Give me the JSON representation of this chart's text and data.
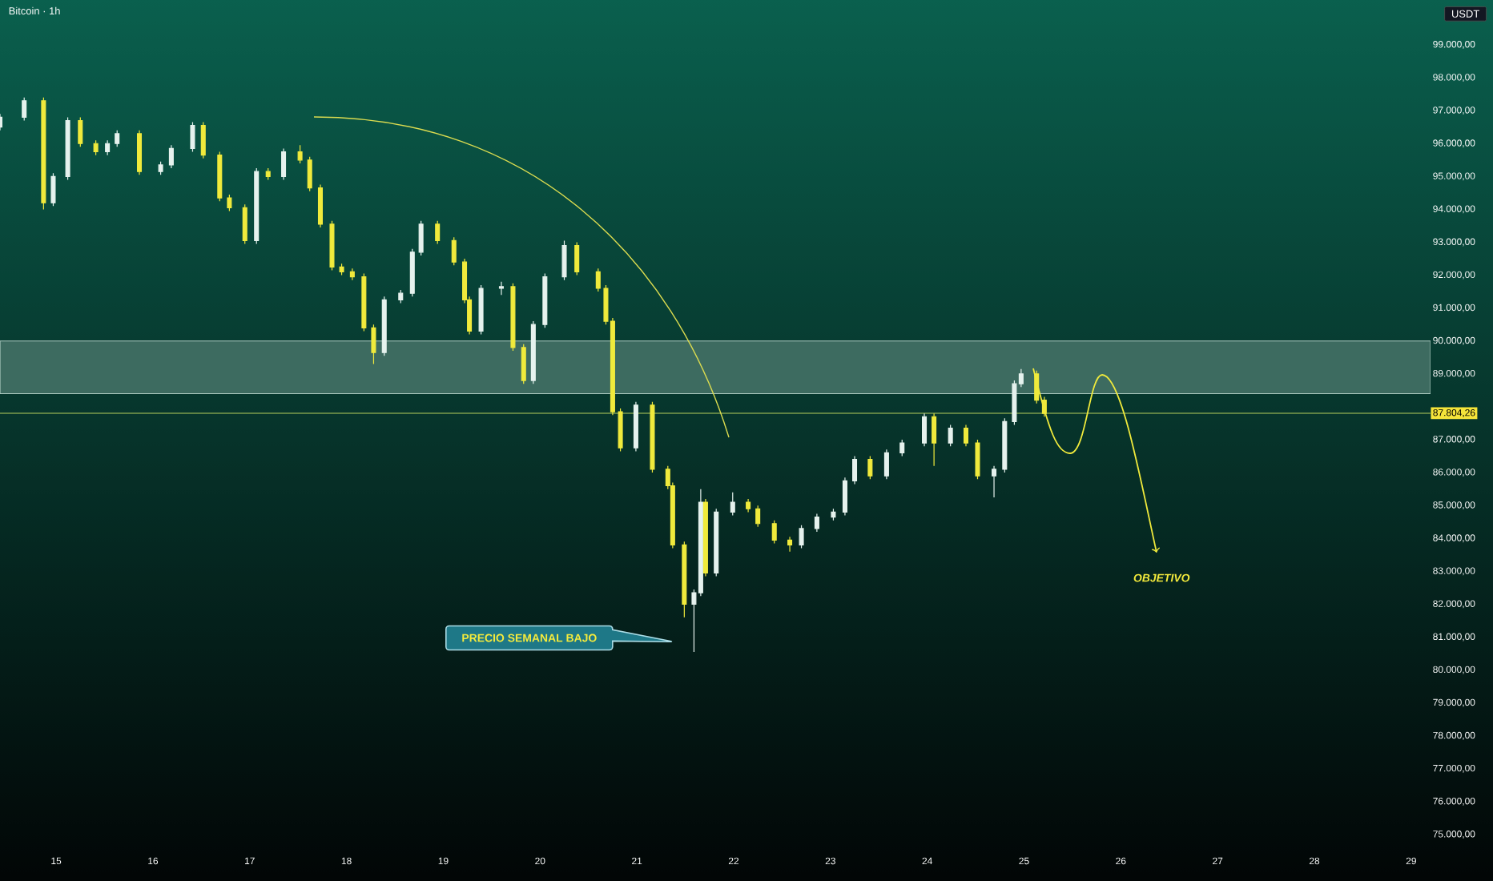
{
  "chart_data": {
    "type": "candlestick",
    "title": "Bitcoin · 1h",
    "ylabel": "USDT",
    "x": [
      14.42,
      14.67,
      14.87,
      14.97,
      15.12,
      15.25,
      15.41,
      15.53,
      15.63,
      15.86,
      16.08,
      16.19,
      16.41,
      16.52,
      16.69,
      16.79,
      16.95,
      17.07,
      17.19,
      17.35,
      17.52,
      17.62,
      17.73,
      17.85,
      17.95,
      18.06,
      18.18,
      18.28,
      18.39,
      18.56,
      18.68,
      18.77,
      18.94,
      19.11,
      19.22,
      19.27,
      19.39,
      19.6,
      19.72,
      19.83,
      19.93,
      20.05,
      20.25,
      20.38,
      20.6,
      20.68,
      20.75,
      20.83,
      20.99,
      21.16,
      21.32,
      21.37,
      21.49,
      21.59,
      21.66,
      21.71,
      21.82,
      21.99,
      22.15,
      22.25,
      22.42,
      22.58,
      22.7,
      22.86,
      23.03,
      23.15,
      23.25,
      23.41,
      23.58,
      23.74,
      23.97,
      24.07,
      24.24,
      24.4,
      24.52,
      24.69,
      24.8,
      24.9,
      24.97,
      25.13,
      25.21
    ],
    "ohlc": [
      [
        96500,
        96900,
        96400,
        96800
      ],
      [
        96800,
        97400,
        96700,
        97300
      ],
      [
        97300,
        97400,
        94000,
        94200
      ],
      [
        94200,
        95100,
        94100,
        95000
      ],
      [
        95000,
        96800,
        94900,
        96700
      ],
      [
        96700,
        96800,
        95900,
        96000
      ],
      [
        96000,
        96100,
        95650,
        95750
      ],
      [
        95750,
        96100,
        95650,
        96000
      ],
      [
        96000,
        96400,
        95900,
        96300
      ],
      [
        96300,
        96400,
        95050,
        95150
      ],
      [
        95150,
        95450,
        95050,
        95350
      ],
      [
        95350,
        95950,
        95250,
        95850
      ],
      [
        95850,
        96650,
        95750,
        96550
      ],
      [
        96550,
        96650,
        95550,
        95650
      ],
      [
        95650,
        95750,
        94250,
        94350
      ],
      [
        94350,
        94450,
        93950,
        94050
      ],
      [
        94050,
        94150,
        92950,
        93050
      ],
      [
        93050,
        95250,
        92950,
        95150
      ],
      [
        95150,
        95250,
        94900,
        95000
      ],
      [
        95000,
        95850,
        94900,
        95750
      ],
      [
        95750,
        95950,
        95400,
        95500
      ],
      [
        95500,
        95600,
        94550,
        94650
      ],
      [
        94650,
        94750,
        93450,
        93550
      ],
      [
        93550,
        93650,
        92150,
        92250
      ],
      [
        92250,
        92350,
        92000,
        92100
      ],
      [
        92100,
        92200,
        91850,
        91950
      ],
      [
        91950,
        92050,
        90300,
        90400
      ],
      [
        90400,
        90500,
        89300,
        89650
      ],
      [
        89650,
        91350,
        89550,
        91250
      ],
      [
        91250,
        91550,
        91150,
        91450
      ],
      [
        91450,
        92800,
        91350,
        92700
      ],
      [
        92700,
        93650,
        92600,
        93550
      ],
      [
        93550,
        93650,
        92950,
        93050
      ],
      [
        93050,
        93150,
        92300,
        92400
      ],
      [
        92400,
        92500,
        91150,
        91250
      ],
      [
        91250,
        91350,
        90200,
        90300
      ],
      [
        90300,
        91700,
        90200,
        91600
      ],
      [
        91600,
        91800,
        91400,
        91650
      ],
      [
        91650,
        91750,
        89700,
        89800
      ],
      [
        89800,
        89900,
        88700,
        88800
      ],
      [
        88800,
        90600,
        88700,
        90500
      ],
      [
        90500,
        92050,
        90400,
        91950
      ],
      [
        91950,
        93050,
        91850,
        92900
      ],
      [
        92900,
        93000,
        92000,
        92100
      ],
      [
        92100,
        92200,
        91500,
        91600
      ],
      [
        91600,
        91700,
        90500,
        90600
      ],
      [
        90600,
        90700,
        87750,
        87850
      ],
      [
        87850,
        87950,
        86650,
        86750
      ],
      [
        86750,
        88150,
        86650,
        88050
      ],
      [
        88050,
        88150,
        86000,
        86100
      ],
      [
        86100,
        86200,
        85500,
        85600
      ],
      [
        85600,
        85700,
        83700,
        83800
      ],
      [
        83800,
        83900,
        81600,
        82000
      ],
      [
        82000,
        82450,
        80550,
        82350
      ],
      [
        82350,
        85500,
        82250,
        85100
      ],
      [
        85100,
        85200,
        82850,
        82950
      ],
      [
        82950,
        84900,
        82850,
        84800
      ],
      [
        84800,
        85400,
        84700,
        85100
      ],
      [
        85100,
        85200,
        84800,
        84900
      ],
      [
        84900,
        85000,
        84350,
        84450
      ],
      [
        84450,
        84550,
        83850,
        83950
      ],
      [
        83950,
        84050,
        83600,
        83800
      ],
      [
        83800,
        84400,
        83700,
        84300
      ],
      [
        84300,
        84750,
        84200,
        84650
      ],
      [
        84650,
        84900,
        84550,
        84800
      ],
      [
        84800,
        85850,
        84700,
        85750
      ],
      [
        85750,
        86500,
        85650,
        86400
      ],
      [
        86400,
        86500,
        85800,
        85900
      ],
      [
        85900,
        86700,
        85800,
        86600
      ],
      [
        86600,
        87000,
        86500,
        86900
      ],
      [
        86900,
        87800,
        86800,
        87700
      ],
      [
        87700,
        87800,
        86200,
        86900
      ],
      [
        86900,
        87450,
        86800,
        87350
      ],
      [
        87350,
        87450,
        86800,
        86900
      ],
      [
        86900,
        87000,
        85800,
        85900
      ],
      [
        85900,
        86200,
        85250,
        86100
      ],
      [
        86100,
        87650,
        86000,
        87550
      ],
      [
        87550,
        88800,
        87450,
        88700
      ],
      [
        88700,
        89150,
        88600,
        89000
      ],
      [
        89000,
        89100,
        88100,
        88200
      ],
      [
        88200,
        88300,
        87700,
        87800
      ]
    ],
    "colors": [
      "#e6f2ee",
      "#e6f2ee",
      "#f0ea3c",
      "#e6f2ee",
      "#e6f2ee",
      "#f0ea3c",
      "#f0ea3c",
      "#e6f2ee",
      "#e6f2ee",
      "#f0ea3c",
      "#e6f2ee",
      "#e6f2ee",
      "#e6f2ee",
      "#f0ea3c",
      "#f0ea3c",
      "#f0ea3c",
      "#f0ea3c",
      "#e6f2ee",
      "#f0ea3c",
      "#e6f2ee",
      "#f0ea3c",
      "#f0ea3c",
      "#f0ea3c",
      "#f0ea3c",
      "#f0ea3c",
      "#f0ea3c",
      "#f0ea3c",
      "#f0ea3c",
      "#e6f2ee",
      "#e6f2ee",
      "#e6f2ee",
      "#e6f2ee",
      "#f0ea3c",
      "#f0ea3c",
      "#f0ea3c",
      "#f0ea3c",
      "#e6f2ee",
      "#e6f2ee",
      "#f0ea3c",
      "#f0ea3c",
      "#e6f2ee",
      "#e6f2ee",
      "#e6f2ee",
      "#f0ea3c",
      "#f0ea3c",
      "#f0ea3c",
      "#f0ea3c",
      "#f0ea3c",
      "#e6f2ee",
      "#f0ea3c",
      "#f0ea3c",
      "#f0ea3c",
      "#f0ea3c",
      "#e6f2ee",
      "#e6f2ee",
      "#f0ea3c",
      "#e6f2ee",
      "#e6f2ee",
      "#f0ea3c",
      "#f0ea3c",
      "#f0ea3c",
      "#f0ea3c",
      "#e6f2ee",
      "#e6f2ee",
      "#e6f2ee",
      "#e6f2ee",
      "#e6f2ee",
      "#f0ea3c",
      "#e6f2ee",
      "#e6f2ee",
      "#e6f2ee",
      "#f0ea3c",
      "#e6f2ee",
      "#f0ea3c",
      "#f0ea3c",
      "#e6f2ee",
      "#e6f2ee",
      "#e6f2ee",
      "#e6f2ee",
      "#f0ea3c",
      "#f0ea3c"
    ],
    "xlim": [
      14.42,
      29.2
    ],
    "ylim": [
      75000,
      99000
    ],
    "xticks": [
      15,
      16,
      17,
      18,
      19,
      20,
      21,
      22,
      23,
      24,
      25,
      26,
      27,
      28,
      29
    ],
    "yticks": [
      {
        "value": 75000,
        "label": "75.000,00"
      },
      {
        "value": 76000,
        "label": "76.000,00"
      },
      {
        "value": 77000,
        "label": "77.000,00"
      },
      {
        "value": 78000,
        "label": "78.000,00"
      },
      {
        "value": 79000,
        "label": "79.000,00"
      },
      {
        "value": 80000,
        "label": "80.000,00"
      },
      {
        "value": 81000,
        "label": "81.000,00"
      },
      {
        "value": 82000,
        "label": "82.000,00"
      },
      {
        "value": 83000,
        "label": "83.000,00"
      },
      {
        "value": 84000,
        "label": "84.000,00"
      },
      {
        "value": 85000,
        "label": "85.000,00"
      },
      {
        "value": 86000,
        "label": "86.000,00"
      },
      {
        "value": 87000,
        "label": "87.000,00"
      },
      {
        "value": 89000,
        "label": "89.000,00"
      },
      {
        "value": 90000,
        "label": "90.000,00"
      },
      {
        "value": 91000,
        "label": "91.000,00"
      },
      {
        "value": 92000,
        "label": "92.000,00"
      },
      {
        "value": 93000,
        "label": "93.000,00"
      },
      {
        "value": 94000,
        "label": "94.000,00"
      },
      {
        "value": 95000,
        "label": "95.000,00"
      },
      {
        "value": 96000,
        "label": "96.000,00"
      },
      {
        "value": 97000,
        "label": "97.000,00"
      },
      {
        "value": 98000,
        "label": "98.000,00"
      },
      {
        "value": 99000,
        "label": "99.000,00"
      }
    ],
    "ref_lines": [
      {
        "axis": "y",
        "value": 87804.26,
        "label": "87.804,26",
        "color": "#7c9c4c"
      }
    ],
    "bands": [
      {
        "axis": "y",
        "from": 88400,
        "to": 90000,
        "color": "#3d6b60"
      }
    ],
    "annotations": [
      "PRECIO SEMANAL BAJO",
      "OBJETIVO"
    ]
  }
}
